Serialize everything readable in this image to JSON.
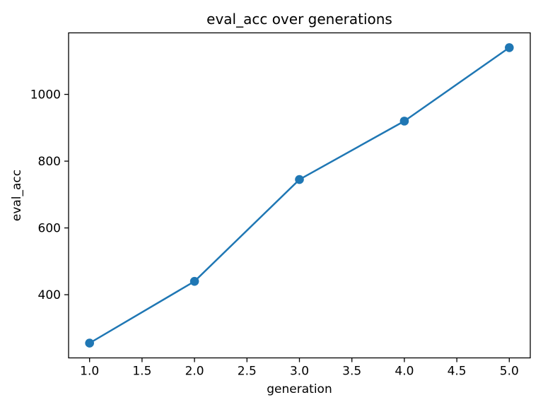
{
  "chart_data": {
    "type": "line",
    "title": "eval_acc over generations",
    "xlabel": "generation",
    "ylabel": "eval_acc",
    "x": [
      1,
      2,
      3,
      4,
      5
    ],
    "y": [
      255,
      440,
      745,
      920,
      1140
    ],
    "series": [
      {
        "name": "eval_acc",
        "x": [
          1,
          2,
          3,
          4,
          5
        ],
        "values": [
          255,
          440,
          745,
          920,
          1140
        ]
      }
    ],
    "xlim": [
      0.8,
      5.2
    ],
    "ylim": [
      210.75,
      1184.25
    ],
    "xticks": [
      {
        "v": 1.0,
        "label": "1.0"
      },
      {
        "v": 1.5,
        "label": "1.5"
      },
      {
        "v": 2.0,
        "label": "2.0"
      },
      {
        "v": 2.5,
        "label": "2.5"
      },
      {
        "v": 3.0,
        "label": "3.0"
      },
      {
        "v": 3.5,
        "label": "3.5"
      },
      {
        "v": 4.0,
        "label": "4.0"
      },
      {
        "v": 4.5,
        "label": "4.5"
      },
      {
        "v": 5.0,
        "label": "5.0"
      }
    ],
    "yticks": [
      {
        "v": 400,
        "label": "400"
      },
      {
        "v": 600,
        "label": "600"
      },
      {
        "v": 800,
        "label": "800"
      },
      {
        "v": 1000,
        "label": "1000"
      }
    ],
    "grid": false,
    "legend": "none",
    "marker": "circle",
    "colors": {
      "line": "#1f77b4",
      "marker": "#1f77b4",
      "spine": "#000000",
      "text": "#000000",
      "background": "#ffffff"
    }
  }
}
